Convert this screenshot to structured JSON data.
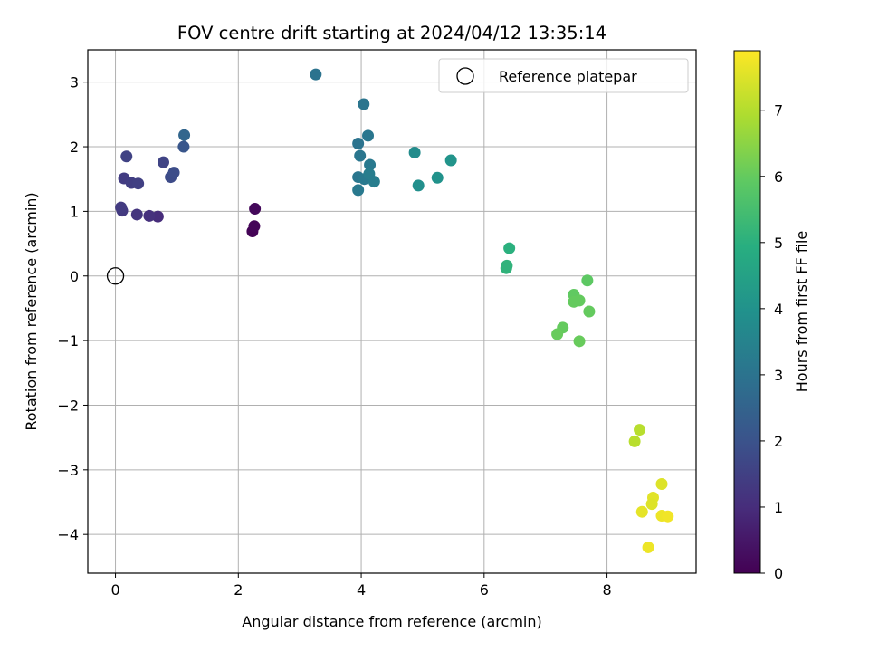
{
  "chart_data": {
    "type": "scatter",
    "title": "FOV centre drift starting at 2024/04/12 13:35:14",
    "xlabel": "Angular distance from reference (arcmin)",
    "ylabel": "Rotation from reference (arcmin)",
    "xlim": [
      -0.45,
      9.45
    ],
    "ylim": [
      -4.6,
      3.5
    ],
    "xticks": [
      0,
      2,
      4,
      6,
      8
    ],
    "yticks": [
      3,
      2,
      1,
      0,
      -1,
      -2,
      -3,
      -4
    ],
    "xtick_labels": [
      "0",
      "2",
      "4",
      "6",
      "8"
    ],
    "ytick_labels": [
      "3",
      "2",
      "1",
      "0",
      "−1",
      "−2",
      "−3",
      "−4"
    ],
    "grid": true,
    "legend": {
      "placement": "top-right",
      "entries": [
        {
          "label": "Reference platepar",
          "marker": "hollow-circle"
        }
      ]
    },
    "reference_point": {
      "x": 0,
      "y": 0
    },
    "colorbar": {
      "label": "Hours from first FF file",
      "colormap": "viridis",
      "range": [
        0,
        7.9
      ],
      "ticks": [
        0,
        1,
        2,
        3,
        4,
        5,
        6,
        7
      ],
      "tick_labels": [
        "0",
        "1",
        "2",
        "3",
        "4",
        "5",
        "6",
        "7"
      ]
    },
    "series": [
      {
        "points": [
          {
            "x": 2.23,
            "y": 0.69,
            "h": 0.05
          },
          {
            "x": 2.26,
            "y": 0.77,
            "h": 0.1
          },
          {
            "x": 2.27,
            "y": 1.04,
            "h": 0.15
          },
          {
            "x": 0.69,
            "y": 0.92,
            "h": 1.0
          },
          {
            "x": 0.55,
            "y": 0.93,
            "h": 1.1
          },
          {
            "x": 0.35,
            "y": 0.95,
            "h": 1.2
          },
          {
            "x": 0.11,
            "y": 1.01,
            "h": 1.3
          },
          {
            "x": 0.09,
            "y": 1.06,
            "h": 1.35
          },
          {
            "x": 0.14,
            "y": 1.51,
            "h": 1.4
          },
          {
            "x": 0.26,
            "y": 1.44,
            "h": 1.45
          },
          {
            "x": 0.37,
            "y": 1.43,
            "h": 1.5
          },
          {
            "x": 0.18,
            "y": 1.85,
            "h": 1.55
          },
          {
            "x": 0.78,
            "y": 1.76,
            "h": 1.6
          },
          {
            "x": 0.9,
            "y": 1.53,
            "h": 1.8
          },
          {
            "x": 0.95,
            "y": 1.6,
            "h": 1.85
          },
          {
            "x": 1.11,
            "y": 2.0,
            "h": 2.1
          },
          {
            "x": 1.12,
            "y": 2.18,
            "h": 2.6
          },
          {
            "x": 3.26,
            "y": 3.12,
            "h": 3.0
          },
          {
            "x": 4.04,
            "y": 2.66,
            "h": 3.05
          },
          {
            "x": 3.95,
            "y": 2.05,
            "h": 3.0
          },
          {
            "x": 4.11,
            "y": 2.17,
            "h": 3.1
          },
          {
            "x": 3.98,
            "y": 1.86,
            "h": 3.1
          },
          {
            "x": 4.14,
            "y": 1.72,
            "h": 3.2
          },
          {
            "x": 3.95,
            "y": 1.53,
            "h": 3.1
          },
          {
            "x": 4.05,
            "y": 1.5,
            "h": 3.2
          },
          {
            "x": 4.13,
            "y": 1.58,
            "h": 3.3
          },
          {
            "x": 4.21,
            "y": 1.46,
            "h": 3.3
          },
          {
            "x": 3.95,
            "y": 1.33,
            "h": 3.2
          },
          {
            "x": 4.87,
            "y": 1.91,
            "h": 3.8
          },
          {
            "x": 4.93,
            "y": 1.4,
            "h": 3.9
          },
          {
            "x": 5.24,
            "y": 1.52,
            "h": 4.0
          },
          {
            "x": 5.46,
            "y": 1.79,
            "h": 4.05
          },
          {
            "x": 6.41,
            "y": 0.43,
            "h": 5.0
          },
          {
            "x": 6.37,
            "y": 0.16,
            "h": 5.1
          },
          {
            "x": 6.36,
            "y": 0.12,
            "h": 5.1
          },
          {
            "x": 7.68,
            "y": -0.07,
            "h": 5.9
          },
          {
            "x": 7.46,
            "y": -0.29,
            "h": 5.95
          },
          {
            "x": 7.46,
            "y": -0.4,
            "h": 6.0
          },
          {
            "x": 7.55,
            "y": -0.38,
            "h": 6.0
          },
          {
            "x": 7.71,
            "y": -0.55,
            "h": 6.0
          },
          {
            "x": 7.28,
            "y": -0.8,
            "h": 6.0
          },
          {
            "x": 7.19,
            "y": -0.9,
            "h": 6.05
          },
          {
            "x": 7.55,
            "y": -1.01,
            "h": 6.05
          },
          {
            "x": 8.53,
            "y": -2.38,
            "h": 7.05
          },
          {
            "x": 8.45,
            "y": -2.56,
            "h": 7.05
          },
          {
            "x": 8.89,
            "y": -3.22,
            "h": 7.5
          },
          {
            "x": 8.75,
            "y": -3.43,
            "h": 7.55
          },
          {
            "x": 8.73,
            "y": -3.53,
            "h": 7.5
          },
          {
            "x": 8.57,
            "y": -3.65,
            "h": 7.6
          },
          {
            "x": 8.89,
            "y": -3.71,
            "h": 7.7
          },
          {
            "x": 8.99,
            "y": -3.72,
            "h": 7.75
          },
          {
            "x": 8.67,
            "y": -4.2,
            "h": 7.7
          }
        ]
      }
    ]
  }
}
